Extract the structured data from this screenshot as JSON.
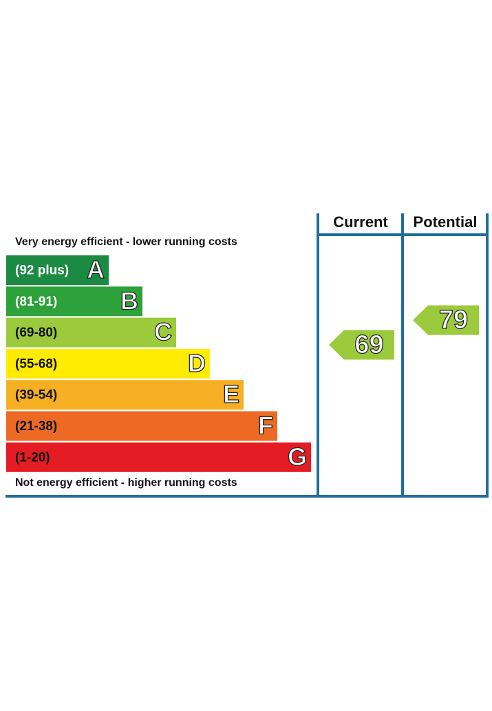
{
  "header": {
    "top_label": "Very energy efficient - lower running costs",
    "bottom_label": "Not energy efficient - higher running costs"
  },
  "columns": [
    "Current",
    "Potential"
  ],
  "bands": [
    {
      "range": "(92 plus)",
      "letter": "A",
      "color": "#1b8a43",
      "text_color": "#ffffff"
    },
    {
      "range": "(81-91)",
      "letter": "B",
      "color": "#2ea23a",
      "text_color": "#ffffff"
    },
    {
      "range": "(69-80)",
      "letter": "C",
      "color": "#9bca3c",
      "text_color": "#111111"
    },
    {
      "range": "(55-68)",
      "letter": "D",
      "color": "#ffec00",
      "text_color": "#111111"
    },
    {
      "range": "(39-54)",
      "letter": "E",
      "color": "#f6ae23",
      "text_color": "#111111"
    },
    {
      "range": "(21-38)",
      "letter": "F",
      "color": "#ec6a24",
      "text_color": "#111111"
    },
    {
      "range": "(1-20)",
      "letter": "G",
      "color": "#e31d23",
      "text_color": "#111111"
    }
  ],
  "ratings": {
    "current": 69,
    "potential": 79
  }
}
